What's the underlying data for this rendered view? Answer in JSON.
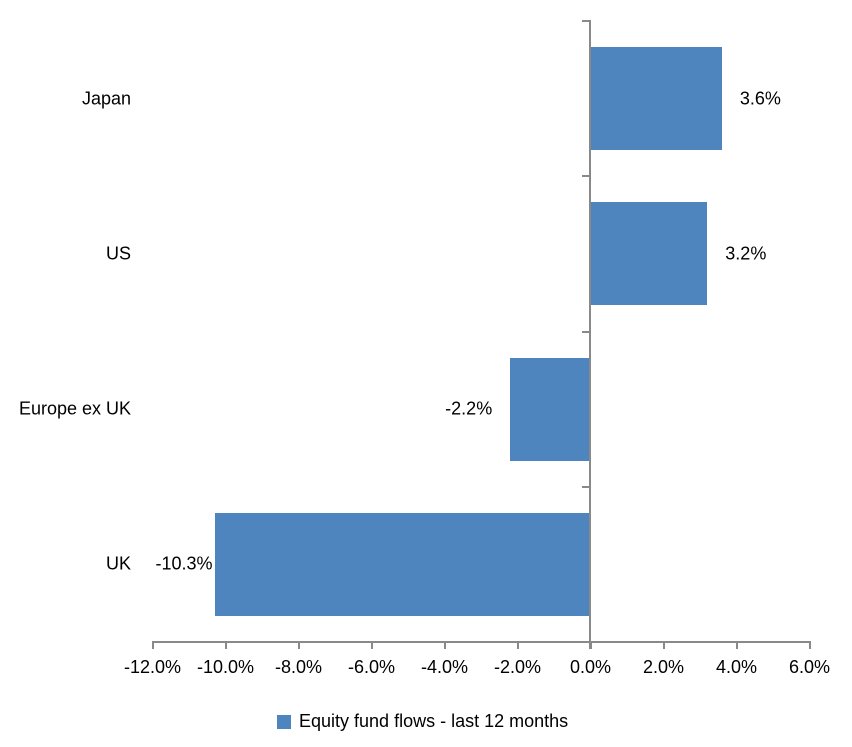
{
  "chart_data": {
    "type": "bar",
    "orientation": "horizontal",
    "title": "",
    "categories": [
      "Japan",
      "US",
      "Europe ex UK",
      "UK"
    ],
    "series": [
      {
        "name": "Equity fund flows - last 12 months",
        "values": [
          3.6,
          3.2,
          -2.2,
          -10.3
        ],
        "value_labels": [
          "3.6%",
          "3.2%",
          "-2.2%",
          "-10.3%"
        ]
      }
    ],
    "xlim": [
      -12,
      6
    ],
    "x_tick_values": [
      -12,
      -10,
      -8,
      -6,
      -4,
      -2,
      0,
      2,
      4,
      6
    ],
    "x_tick_labels": [
      "-12.0%",
      "-10.0%",
      "-8.0%",
      "-6.0%",
      "-4.0%",
      "-2.0%",
      "0.0%",
      "2.0%",
      "4.0%",
      "6.0%"
    ],
    "grid": false,
    "legend": {
      "position": "bottom",
      "entries": [
        "Equity fund flows - last 12 months"
      ]
    },
    "colors": {
      "bar": "#4E85BE",
      "axis": "#898989",
      "text": "#000000",
      "background": "#FFFFFF"
    }
  }
}
